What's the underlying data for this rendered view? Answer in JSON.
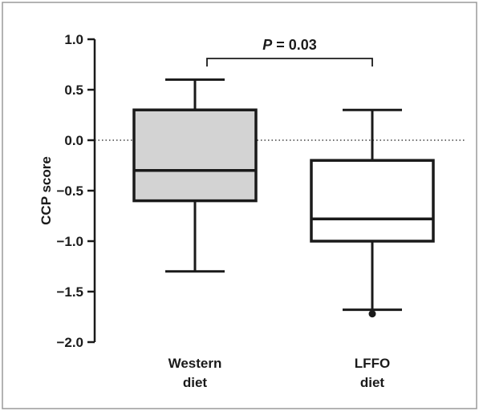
{
  "chart_data": {
    "type": "box",
    "ylabel": "CCP score",
    "ylim": [
      -2.0,
      1.0
    ],
    "yticks": [
      {
        "value": 1.0,
        "label": "1.0"
      },
      {
        "value": 0.5,
        "label": "0.5"
      },
      {
        "value": 0.0,
        "label": "0.0"
      },
      {
        "value": -0.5,
        "label": "-0.5"
      },
      {
        "value": -1.0,
        "label": "-1.0"
      },
      {
        "value": -1.5,
        "label": "-1.5"
      },
      {
        "value": -2.0,
        "label": "-2.0"
      }
    ],
    "reference_line": {
      "y": 0.0,
      "style": "dotted"
    },
    "categories": [
      {
        "line1": "Western",
        "line2": "diet"
      },
      {
        "line1": "LFFO",
        "line2": "diet"
      }
    ],
    "boxes": [
      {
        "min": -1.3,
        "q1": -0.6,
        "median": -0.3,
        "q3": 0.3,
        "max": 0.6,
        "fill": "#d3d3d3",
        "outliers": []
      },
      {
        "min": -1.68,
        "q1": -1.0,
        "median": -0.78,
        "q3": -0.2,
        "max": 0.3,
        "fill": "#ffffff",
        "outliers": [
          -1.72
        ]
      }
    ],
    "annotation": {
      "italic_part": "P",
      "rest": " = 0.03",
      "between": [
        0,
        1
      ]
    }
  },
  "colors": {
    "stroke": "#1a1a1a",
    "frame": "#9a9a9a"
  }
}
